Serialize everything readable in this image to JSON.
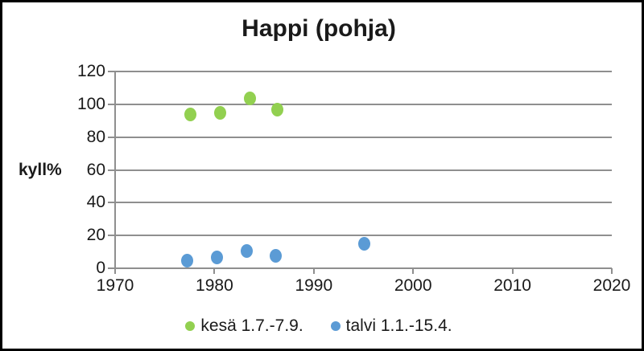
{
  "chart_data": {
    "type": "scatter",
    "title": "Happi (pohja)",
    "xlabel": "",
    "ylabel": "kyll%",
    "xlim": [
      1970,
      2020
    ],
    "ylim": [
      0,
      120
    ],
    "xticks": [
      1970,
      1980,
      1990,
      2000,
      2010,
      2020
    ],
    "yticks": [
      0,
      20,
      40,
      60,
      80,
      100,
      120
    ],
    "grid": "horizontal",
    "grid_color": "#8f8f8f",
    "legend_position": "bottom",
    "series": [
      {
        "name": "kesä 1.7.-7.9.",
        "color": "#92d050",
        "points": [
          {
            "x": 1977.5,
            "y": 94
          },
          {
            "x": 1980.5,
            "y": 95
          },
          {
            "x": 1983.5,
            "y": 104
          },
          {
            "x": 1986.3,
            "y": 97
          }
        ]
      },
      {
        "name": "talvi 1.1.-15.4.",
        "color": "#5b9bd5",
        "points": [
          {
            "x": 1977.2,
            "y": 5
          },
          {
            "x": 1980.2,
            "y": 7
          },
          {
            "x": 1983.2,
            "y": 11
          },
          {
            "x": 1986.1,
            "y": 8
          },
          {
            "x": 1995,
            "y": 15
          }
        ]
      }
    ]
  }
}
